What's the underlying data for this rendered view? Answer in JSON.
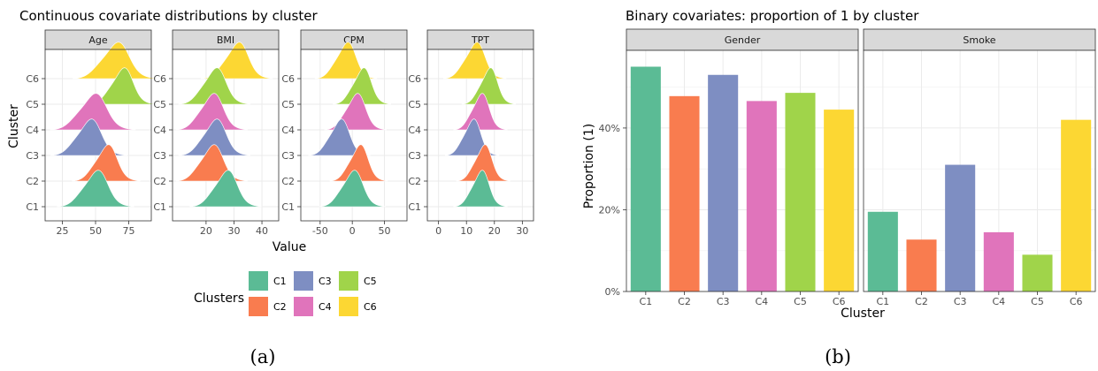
{
  "colors": {
    "C1": "#5bbb95",
    "C2": "#f97c4f",
    "C3": "#7e8ec2",
    "C4": "#e074bb",
    "C5": "#a0d44a",
    "C6": "#fcd733",
    "strip": "#d9d9d9",
    "grid": "#ebebeb"
  },
  "captions": {
    "left": "(a)",
    "right": "(b)"
  },
  "chart_data": [
    {
      "type": "ridgeline",
      "title": "Continuous covariate distributions by cluster",
      "xlabel": "Value",
      "ylabel": "Cluster",
      "clusters": [
        "C1",
        "C2",
        "C3",
        "C4",
        "C5",
        "C6"
      ],
      "legend": {
        "title": "Clusters",
        "placement": "bottom",
        "entries": [
          "C1",
          "C3",
          "C5",
          "C2",
          "C4",
          "C6"
        ]
      },
      "grid": true,
      "facets": [
        {
          "name": "Age",
          "xlim": [
            12,
            92
          ],
          "ticks": [
            25,
            50,
            75
          ],
          "peaks": {
            "C1": [
              50,
              9
            ],
            "C2": [
              58,
              8
            ],
            "C3": [
              45,
              9
            ],
            "C4": [
              48,
              10
            ],
            "C5": [
              70,
              8
            ],
            "C6": [
              65,
              10
            ]
          }
        },
        {
          "name": "BMI",
          "xlim": [
            8,
            46
          ],
          "ticks": [
            20,
            30,
            40
          ],
          "peaks": {
            "C1": [
              27,
              4
            ],
            "C2": [
              22,
              4
            ],
            "C3": [
              23,
              4
            ],
            "C4": [
              22,
              4
            ],
            "C5": [
              23,
              4
            ],
            "C6": [
              31,
              4
            ]
          }
        },
        {
          "name": "CPM",
          "xlim": [
            -80,
            85
          ],
          "ticks": [
            -50,
            0,
            50
          ],
          "peaks": {
            "C1": [
              0,
              16
            ],
            "C2": [
              10,
              14
            ],
            "C3": [
              -20,
              15
            ],
            "C4": [
              5,
              15
            ],
            "C5": [
              15,
              14
            ],
            "C6": [
              -10,
              15
            ]
          }
        },
        {
          "name": "TPT",
          "xlim": [
            -4,
            34
          ],
          "ticks": [
            0,
            10,
            20,
            30
          ],
          "peaks": {
            "C1": [
              15,
              3
            ],
            "C2": [
              16,
              3
            ],
            "C3": [
              12,
              3
            ],
            "C4": [
              15,
              3
            ],
            "C5": [
              18,
              3
            ],
            "C6": [
              13,
              3.5
            ]
          }
        }
      ]
    },
    {
      "type": "bar",
      "title": "Binary covariates: proportion of 1 by cluster",
      "xlabel": "Cluster",
      "ylabel": "Proportion (1)",
      "categories": [
        "C1",
        "C2",
        "C3",
        "C4",
        "C5",
        "C6"
      ],
      "ylim": [
        0,
        0.59
      ],
      "yticks": [
        "0%",
        "20%",
        "40%"
      ],
      "grid": true,
      "facets": [
        {
          "name": "Gender",
          "values": [
            0.55,
            0.478,
            0.53,
            0.466,
            0.486,
            0.445
          ]
        },
        {
          "name": "Smoke",
          "values": [
            0.195,
            0.127,
            0.31,
            0.145,
            0.09,
            0.42
          ]
        }
      ]
    }
  ]
}
